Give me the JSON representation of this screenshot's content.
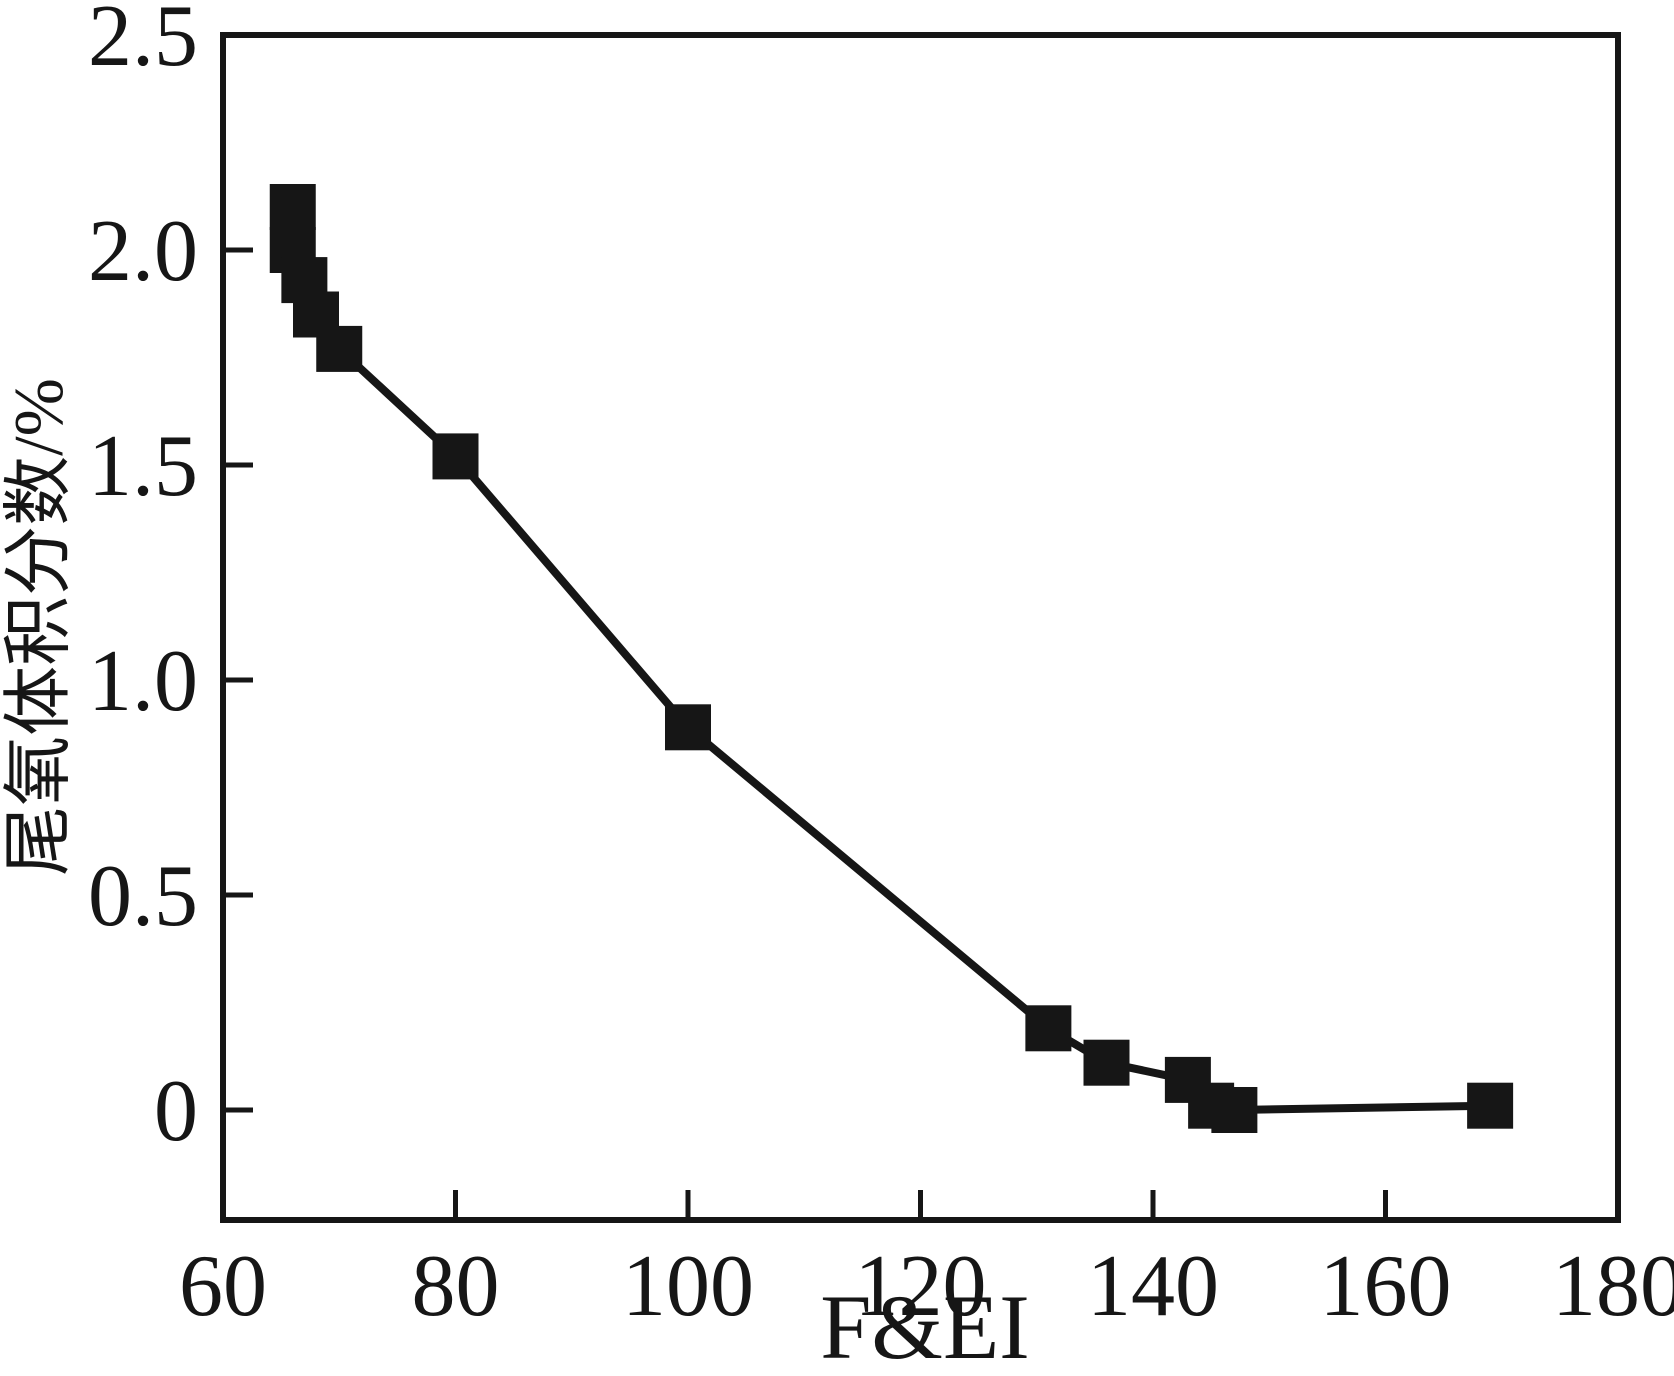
{
  "chart_data": {
    "type": "line",
    "title": "",
    "xlabel": "F&EI",
    "ylabel": "尾氧体积分数/%",
    "xlim": [
      60,
      180
    ],
    "ylim": [
      -0.26,
      2.5
    ],
    "xticks": [
      {
        "value": 60,
        "label": "60"
      },
      {
        "value": 80,
        "label": "80"
      },
      {
        "value": 100,
        "label": "100"
      },
      {
        "value": 120,
        "label": "120"
      },
      {
        "value": 140,
        "label": "140"
      },
      {
        "value": 160,
        "label": "160"
      },
      {
        "value": 180,
        "label": "180"
      }
    ],
    "yticks": [
      {
        "value": 0,
        "label": "0"
      },
      {
        "value": 0.5,
        "label": "0.5"
      },
      {
        "value": 1.0,
        "label": "1.0"
      },
      {
        "value": 1.5,
        "label": "1.5"
      },
      {
        "value": 2.0,
        "label": "2.0"
      },
      {
        "value": 2.5,
        "label": "2.5"
      }
    ],
    "grid": false,
    "legend": "none",
    "marker_shape": "filled-square",
    "line_color": "#161616",
    "series": [
      {
        "name": "尾氧体积分数",
        "points": [
          {
            "x": 66,
            "y": 2.1
          },
          {
            "x": 66,
            "y": 2.0
          },
          {
            "x": 67,
            "y": 1.93
          },
          {
            "x": 68,
            "y": 1.85
          },
          {
            "x": 70,
            "y": 1.77
          },
          {
            "x": 80,
            "y": 1.52
          },
          {
            "x": 100,
            "y": 0.89
          },
          {
            "x": 131,
            "y": 0.19
          },
          {
            "x": 136,
            "y": 0.11
          },
          {
            "x": 143,
            "y": 0.07
          },
          {
            "x": 145,
            "y": 0.01
          },
          {
            "x": 147,
            "y": 0.0
          },
          {
            "x": 169,
            "y": 0.01
          }
        ]
      }
    ]
  }
}
